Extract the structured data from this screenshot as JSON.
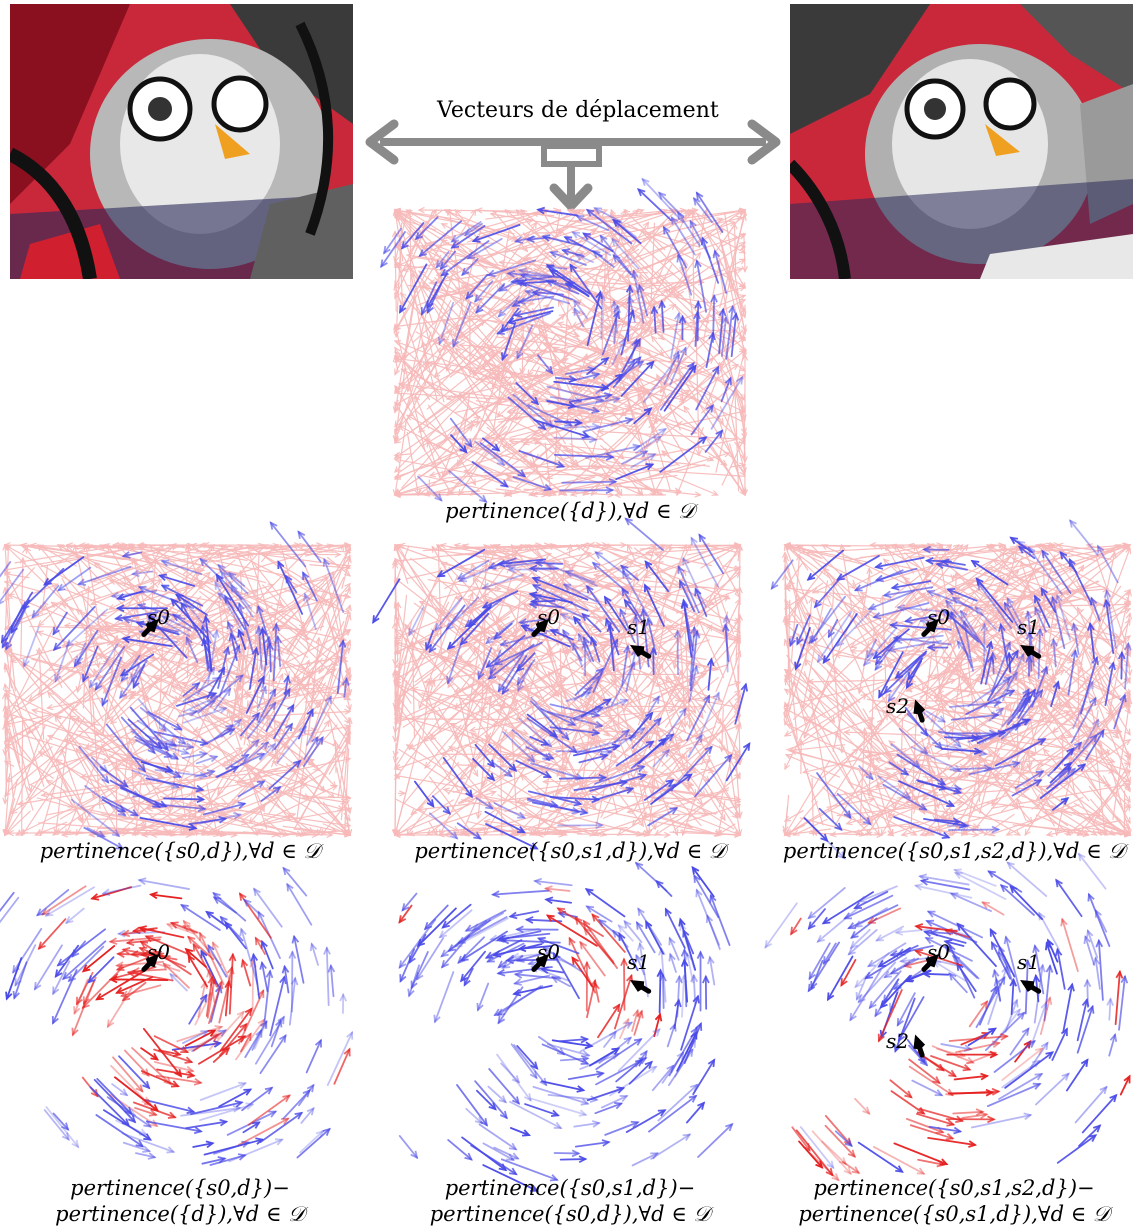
{
  "title": "Vecteurs de déplacement",
  "images": {
    "left": "graffiti-image-1",
    "right": "graffiti-image-2"
  },
  "colors": {
    "arrow_gray": "#8a8a8a",
    "outlier": "#f7b9b9",
    "inlier": "#4a4ae8",
    "strong_red": "#e62020",
    "black": "#000000"
  },
  "captions": {
    "top": "pertinence({d}),∀d ∈ 𝒟",
    "row2": [
      "pertinence({s0,d}),∀d ∈ 𝒟",
      "pertinence({s0,s1,d}),∀d ∈ 𝒟",
      "pertinence({s0,s1,s2,d}),∀d ∈ 𝒟"
    ],
    "row3": [
      [
        "pertinence({s0,d})−",
        "pertinence({d}),∀d ∈ 𝒟"
      ],
      [
        "pertinence({s0,s1,d})−",
        "pertinence({s0,d}),∀d ∈ 𝒟"
      ],
      [
        "pertinence({s0,s1,s2,d})−",
        "pertinence({s0,s1,d}),∀d ∈ 𝒟"
      ]
    ]
  },
  "seed_labels": {
    "s0": "s0",
    "s1": "s1",
    "s2": "s2"
  }
}
